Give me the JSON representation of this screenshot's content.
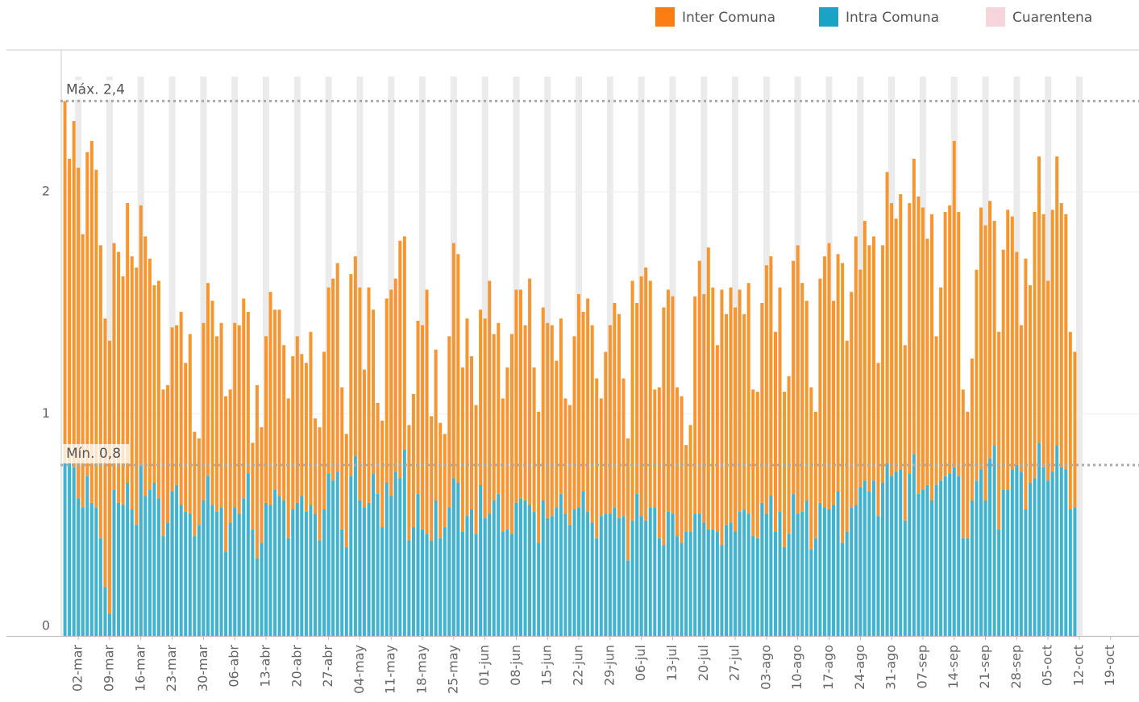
{
  "chart_data": {
    "type": "stacked_bar",
    "categories": [
      "28-feb",
      "29-feb",
      "01-mar",
      "02-mar",
      "03-mar",
      "04-mar",
      "05-mar",
      "06-mar",
      "07-mar",
      "08-mar",
      "09-mar",
      "10-mar",
      "11-mar",
      "12-mar",
      "13-mar",
      "14-mar",
      "15-mar",
      "16-mar",
      "17-mar",
      "18-mar",
      "19-mar",
      "20-mar",
      "21-mar",
      "22-mar",
      "23-mar",
      "24-mar",
      "25-mar",
      "26-mar",
      "27-mar",
      "28-mar",
      "29-mar",
      "30-mar",
      "31-mar",
      "01-abr",
      "02-abr",
      "03-abr",
      "04-abr",
      "05-abr",
      "06-abr",
      "07-abr",
      "08-abr",
      "09-abr",
      "10-abr",
      "11-abr",
      "12-abr",
      "13-abr",
      "14-abr",
      "15-abr",
      "16-abr",
      "17-abr",
      "18-abr",
      "19-abr",
      "20-abr",
      "21-abr",
      "22-abr",
      "23-abr",
      "24-abr",
      "25-abr",
      "26-abr",
      "27-abr",
      "28-abr",
      "29-abr",
      "30-abr",
      "01-may",
      "02-may",
      "03-may",
      "04-may",
      "05-may",
      "06-may",
      "07-may",
      "08-may",
      "09-may",
      "10-may",
      "11-may",
      "12-may",
      "13-may",
      "14-may",
      "15-may",
      "16-may",
      "17-may",
      "18-may",
      "19-may",
      "20-may",
      "21-may",
      "22-may",
      "23-may",
      "24-may",
      "25-may",
      "26-may",
      "27-may",
      "28-may",
      "29-may",
      "30-may",
      "31-may",
      "01-jun",
      "02-jun",
      "03-jun",
      "04-jun",
      "05-jun",
      "06-jun",
      "07-jun",
      "08-jun",
      "09-jun",
      "10-jun",
      "11-jun",
      "12-jun",
      "13-jun",
      "14-jun",
      "15-jun",
      "16-jun",
      "17-jun",
      "18-jun",
      "19-jun",
      "20-jun",
      "21-jun",
      "22-jun",
      "23-jun",
      "24-jun",
      "25-jun",
      "26-jun",
      "27-jun",
      "28-jun",
      "29-jun",
      "30-jun",
      "01-jul",
      "02-jul",
      "03-jul",
      "04-jul",
      "05-jul",
      "06-jul",
      "07-jul",
      "08-jul",
      "09-jul",
      "10-jul",
      "11-jul",
      "12-jul",
      "13-jul",
      "14-jul",
      "15-jul",
      "16-jul",
      "17-jul",
      "18-jul",
      "19-jul",
      "20-jul",
      "21-jul",
      "22-jul",
      "23-jul",
      "24-jul",
      "25-jul",
      "26-jul",
      "27-jul",
      "28-jul",
      "29-jul",
      "30-jul",
      "31-jul",
      "01-ago",
      "02-ago",
      "03-ago",
      "04-ago",
      "05-ago",
      "06-ago",
      "07-ago",
      "08-ago",
      "09-ago",
      "10-ago",
      "11-ago",
      "12-ago",
      "13-ago",
      "14-ago",
      "15-ago",
      "16-ago",
      "17-ago",
      "18-ago",
      "19-ago",
      "20-ago",
      "21-ago",
      "22-ago",
      "23-ago",
      "24-ago",
      "25-ago",
      "26-ago",
      "27-ago",
      "28-ago",
      "29-ago",
      "30-ago",
      "31-ago",
      "01-sep",
      "02-sep",
      "03-sep",
      "04-sep",
      "05-sep",
      "06-sep",
      "07-sep",
      "08-sep",
      "09-sep",
      "10-sep",
      "11-sep",
      "12-sep",
      "13-sep",
      "14-sep",
      "15-sep",
      "16-sep",
      "17-sep",
      "18-sep",
      "19-sep",
      "20-sep",
      "21-sep",
      "22-sep",
      "23-sep",
      "24-sep",
      "25-sep",
      "26-sep",
      "27-sep",
      "28-sep",
      "29-sep",
      "30-sep",
      "01-oct",
      "02-oct",
      "03-oct",
      "04-oct",
      "05-oct",
      "06-oct",
      "07-oct",
      "08-oct",
      "09-oct",
      "10-oct",
      "11-oct"
    ],
    "series": [
      {
        "name": "Inter Comuna",
        "color": "#f7962f",
        "legend_color": "#fb7d12",
        "values": [
          1.63,
          1.37,
          1.56,
          1.49,
          1.23,
          1.46,
          1.63,
          1.52,
          1.32,
          1.21,
          1.23,
          1.11,
          1.13,
          1.03,
          1.26,
          1.14,
          1.16,
          1.17,
          1.17,
          1.04,
          0.89,
          0.98,
          0.66,
          0.62,
          0.74,
          0.72,
          0.87,
          0.67,
          0.81,
          0.47,
          0.39,
          0.8,
          0.87,
          0.92,
          0.79,
          0.83,
          0.7,
          0.6,
          0.83,
          0.85,
          0.9,
          0.73,
          0.39,
          0.78,
          0.52,
          0.75,
          0.96,
          0.81,
          0.84,
          0.7,
          0.63,
          0.69,
          0.75,
          0.64,
          0.67,
          0.78,
          0.43,
          0.51,
          0.71,
          0.84,
          0.91,
          0.94,
          0.64,
          0.51,
          0.91,
          0.9,
          0.96,
          0.62,
          0.97,
          0.74,
          0.41,
          0.48,
          0.83,
          0.93,
          0.87,
          1.07,
          0.96,
          0.52,
          0.6,
          0.78,
          0.92,
          1.1,
          0.56,
          0.68,
          0.52,
          0.42,
          0.77,
          1.06,
          1.03,
          0.74,
          0.89,
          0.69,
          0.58,
          0.79,
          0.9,
          1.05,
          0.75,
          0.77,
          0.6,
          0.73,
          0.9,
          0.96,
          0.94,
          0.79,
          1.02,
          0.65,
          0.59,
          0.87,
          0.88,
          0.86,
          0.66,
          0.79,
          0.52,
          0.54,
          0.78,
          0.96,
          0.81,
          0.96,
          0.89,
          0.72,
          0.53,
          0.73,
          0.85,
          0.92,
          0.92,
          0.62,
          0.55,
          1.08,
          0.86,
          1.08,
          1.14,
          1.02,
          0.53,
          0.68,
          1.07,
          1.0,
          0.98,
          0.67,
          0.66,
          0.39,
          0.48,
          0.98,
          1.14,
          1.03,
          1.27,
          1.09,
          0.84,
          1.15,
          0.95,
          1.06,
          1.01,
          1.0,
          0.88,
          1.04,
          0.66,
          0.66,
          0.9,
          1.12,
          1.08,
          0.9,
          1.01,
          0.7,
          0.71,
          1.05,
          1.21,
          1.03,
          0.9,
          0.73,
          0.57,
          1.01,
          1.13,
          1.2,
          0.92,
          1.07,
          1.26,
          0.86,
          0.97,
          1.21,
          0.98,
          1.17,
          1.11,
          1.1,
          0.69,
          1.07,
          1.31,
          1.23,
          1.14,
          1.24,
          0.79,
          1.22,
          1.33,
          1.34,
          1.27,
          1.11,
          1.29,
          0.67,
          0.87,
          1.19,
          1.21,
          1.47,
          1.19,
          0.67,
          0.57,
          0.64,
          0.95,
          1.18,
          1.24,
          1.16,
          1.01,
          0.89,
          1.08,
          1.26,
          1.14,
          0.96,
          0.66,
          1.13,
          0.89,
          1.2,
          1.29,
          1.14,
          0.9,
          1.18,
          1.3,
          1.19,
          1.15,
          0.8,
          0.7
        ]
      },
      {
        "name": "Intra Comuna",
        "color": "#40b3d0",
        "legend_color": "#1ba3c6",
        "values": [
          0.78,
          0.78,
          0.76,
          0.62,
          0.58,
          0.72,
          0.6,
          0.58,
          0.44,
          0.22,
          0.1,
          0.66,
          0.6,
          0.59,
          0.69,
          0.57,
          0.5,
          0.77,
          0.63,
          0.66,
          0.69,
          0.62,
          0.45,
          0.51,
          0.65,
          0.68,
          0.59,
          0.56,
          0.55,
          0.45,
          0.5,
          0.61,
          0.72,
          0.59,
          0.56,
          0.58,
          0.38,
          0.51,
          0.58,
          0.55,
          0.62,
          0.73,
          0.48,
          0.35,
          0.42,
          0.6,
          0.59,
          0.66,
          0.63,
          0.61,
          0.44,
          0.57,
          0.6,
          0.63,
          0.56,
          0.59,
          0.55,
          0.43,
          0.57,
          0.73,
          0.7,
          0.74,
          0.48,
          0.4,
          0.72,
          0.81,
          0.61,
          0.58,
          0.6,
          0.73,
          0.64,
          0.49,
          0.69,
          0.63,
          0.74,
          0.71,
          0.84,
          0.43,
          0.49,
          0.64,
          0.48,
          0.46,
          0.43,
          0.61,
          0.44,
          0.49,
          0.58,
          0.71,
          0.69,
          0.47,
          0.54,
          0.57,
          0.46,
          0.68,
          0.53,
          0.55,
          0.61,
          0.64,
          0.47,
          0.48,
          0.46,
          0.6,
          0.62,
          0.61,
          0.59,
          0.56,
          0.42,
          0.61,
          0.53,
          0.54,
          0.58,
          0.64,
          0.55,
          0.5,
          0.57,
          0.58,
          0.65,
          0.56,
          0.51,
          0.44,
          0.54,
          0.55,
          0.55,
          0.58,
          0.53,
          0.54,
          0.34,
          0.52,
          0.64,
          0.54,
          0.52,
          0.58,
          0.58,
          0.44,
          0.41,
          0.56,
          0.55,
          0.45,
          0.42,
          0.47,
          0.47,
          0.55,
          0.55,
          0.51,
          0.48,
          0.48,
          0.47,
          0.41,
          0.5,
          0.51,
          0.47,
          0.56,
          0.57,
          0.55,
          0.45,
          0.44,
          0.6,
          0.55,
          0.63,
          0.47,
          0.56,
          0.4,
          0.46,
          0.64,
          0.55,
          0.56,
          0.61,
          0.39,
          0.44,
          0.6,
          0.58,
          0.57,
          0.59,
          0.65,
          0.42,
          0.47,
          0.58,
          0.59,
          0.67,
          0.7,
          0.65,
          0.7,
          0.54,
          0.69,
          0.78,
          0.72,
          0.74,
          0.75,
          0.52,
          0.73,
          0.82,
          0.64,
          0.66,
          0.68,
          0.61,
          0.68,
          0.7,
          0.72,
          0.73,
          0.76,
          0.72,
          0.44,
          0.44,
          0.61,
          0.7,
          0.75,
          0.61,
          0.8,
          0.86,
          0.48,
          0.66,
          0.66,
          0.75,
          0.77,
          0.74,
          0.57,
          0.69,
          0.71,
          0.87,
          0.76,
          0.7,
          0.74,
          0.86,
          0.76,
          0.75,
          0.57,
          0.58
        ]
      }
    ],
    "quarantine": {
      "name": "Cuarentena",
      "color": "#f6d6db",
      "band_color": "#ebebeb",
      "x": [
        "02-mar",
        "09-mar",
        "16-mar",
        "23-mar",
        "30-mar",
        "06-abr",
        "13-abr",
        "20-abr",
        "27-abr",
        "04-may",
        "11-may",
        "18-may",
        "25-may",
        "01-jun",
        "08-jun",
        "15-jun",
        "22-jun",
        "29-jun",
        "06-jul",
        "13-jul",
        "20-jul",
        "27-jul",
        "03-ago",
        "10-ago",
        "17-ago",
        "24-ago",
        "31-ago",
        "07-sep",
        "14-sep",
        "21-sep",
        "28-sep",
        "05-oct",
        "12-oct"
      ]
    },
    "reference_lines": [
      {
        "label": "Máx. 2,4",
        "value": 2.41
      },
      {
        "label": "Mín. 0,8",
        "value": 0.77
      }
    ],
    "xlim": [
      "27-feb",
      "25-oct"
    ],
    "xticks": [
      "02-mar",
      "09-mar",
      "16-mar",
      "23-mar",
      "30-mar",
      "06-abr",
      "13-abr",
      "20-abr",
      "27-abr",
      "04-may",
      "11-may",
      "18-may",
      "25-may",
      "01-jun",
      "08-jun",
      "15-jun",
      "22-jun",
      "29-jun",
      "06-jul",
      "13-jul",
      "20-jul",
      "27-jul",
      "03-ago",
      "10-ago",
      "17-ago",
      "24-ago",
      "31-ago",
      "07-sep",
      "14-sep",
      "21-sep",
      "28-sep",
      "05-oct",
      "12-oct",
      "19-oct"
    ],
    "ylim": [
      0,
      2.64
    ],
    "yticks": [
      0,
      1,
      2
    ],
    "grid": true
  }
}
